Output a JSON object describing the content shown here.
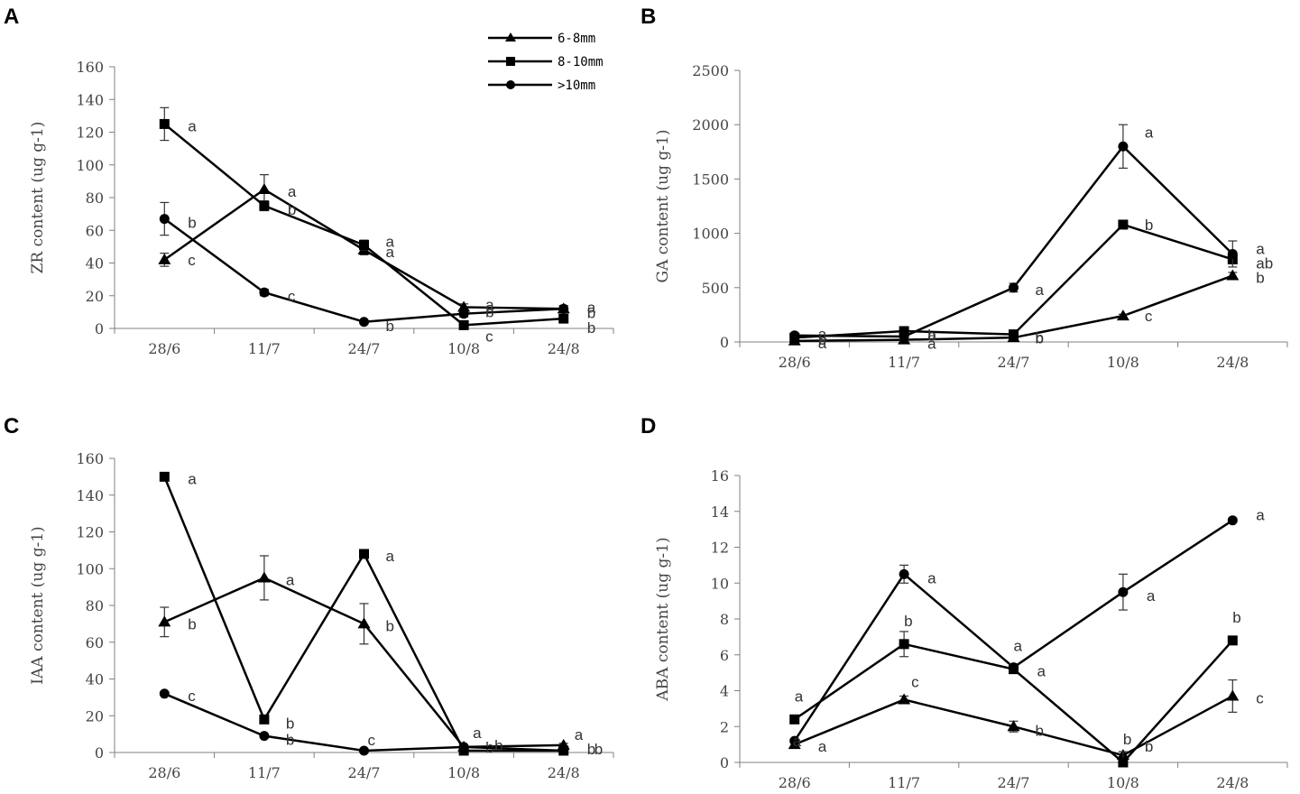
{
  "legend": [
    {
      "name": "6-8mm",
      "marker": "triangle"
    },
    {
      "name": "8-10mm",
      "marker": "square"
    },
    {
      "name": ">10mm",
      "marker": "circle"
    }
  ],
  "chart_data": [
    {
      "letter": "A",
      "type": "line",
      "ylabel": "ZR content (ug g-1)",
      "ylim": [
        0,
        160
      ],
      "yticks": [
        0,
        20,
        40,
        60,
        80,
        100,
        120,
        140,
        160
      ],
      "categories": [
        "28/6",
        "11/7",
        "24/7",
        "10/8",
        "24/8"
      ],
      "series": [
        {
          "name": "6-8mm",
          "marker": "triangle",
          "values": [
            42,
            85,
            48,
            13,
            12
          ],
          "errors": [
            4,
            9,
            3,
            2,
            2
          ],
          "labels": [
            "c",
            "a",
            "a",
            "a",
            "a"
          ]
        },
        {
          "name": "8-10mm",
          "marker": "square",
          "values": [
            125,
            75,
            51,
            2,
            6
          ],
          "errors": [
            10,
            3,
            3,
            1,
            1
          ],
          "labels": [
            "a",
            "b",
            "a",
            "c",
            "b"
          ]
        },
        {
          "name": ">10mm",
          "marker": "circle",
          "values": [
            67,
            22,
            4,
            9,
            12
          ],
          "errors": [
            10,
            2,
            1,
            2,
            2
          ],
          "labels": [
            "b",
            "c",
            "b",
            "b",
            "b"
          ]
        }
      ]
    },
    {
      "letter": "B",
      "type": "line",
      "ylabel": "GA content (ug g-1)",
      "ylim": [
        0,
        2500
      ],
      "yticks": [
        0,
        500,
        1000,
        1500,
        2000,
        2500
      ],
      "categories": [
        "28/6",
        "11/7",
        "24/7",
        "10/8",
        "24/8"
      ],
      "series": [
        {
          "name": "6-8mm",
          "marker": "triangle",
          "values": [
            10,
            20,
            40,
            240,
            610
          ],
          "errors": [
            5,
            5,
            8,
            15,
            30
          ],
          "labels": [
            "a",
            "a",
            "b",
            "c",
            "b"
          ]
        },
        {
          "name": "8-10mm",
          "marker": "square",
          "values": [
            40,
            100,
            70,
            1080,
            760
          ],
          "errors": [
            5,
            10,
            10,
            30,
            40
          ],
          "labels": [
            "b",
            "b",
            "b",
            "b",
            "ab"
          ]
        },
        {
          "name": ">10mm",
          "marker": "circle",
          "values": [
            60,
            50,
            500,
            1800,
            810
          ],
          "errors": [
            8,
            8,
            40,
            200,
            120
          ],
          "labels": [
            "a",
            "a",
            "a",
            "a",
            "a"
          ]
        }
      ]
    },
    {
      "letter": "C",
      "type": "line",
      "ylabel": "IAA content (ug g-1)",
      "ylim": [
        0,
        160
      ],
      "yticks": [
        0,
        20,
        40,
        60,
        80,
        100,
        120,
        140,
        160
      ],
      "categories": [
        "28/6",
        "11/7",
        "24/7",
        "10/8",
        "24/8"
      ],
      "series": [
        {
          "name": "6-8mm",
          "marker": "triangle",
          "values": [
            71,
            95,
            70,
            3,
            4
          ],
          "errors": [
            8,
            12,
            11,
            1,
            1
          ],
          "labels": [
            "b",
            "a",
            "b",
            "a",
            "a"
          ]
        },
        {
          "name": "8-10mm",
          "marker": "square",
          "values": [
            150,
            18,
            108,
            1,
            1
          ],
          "errors": [
            2,
            2,
            2,
            1,
            1
          ],
          "labels": [
            "a",
            "b",
            "a",
            "b",
            "b"
          ]
        },
        {
          "name": ">10mm",
          "marker": "circle",
          "values": [
            32,
            9,
            1,
            3,
            1
          ],
          "errors": [
            1,
            1,
            1,
            1,
            1
          ],
          "labels": [
            "c",
            "b",
            "c",
            "b",
            "b"
          ]
        }
      ]
    },
    {
      "letter": "D",
      "type": "line",
      "ylabel": "ABA content (ug g-1)",
      "ylim": [
        0,
        16
      ],
      "yticks": [
        0,
        2,
        4,
        6,
        8,
        10,
        12,
        14,
        16
      ],
      "categories": [
        "28/6",
        "11/7",
        "24/7",
        "10/8",
        "24/8"
      ],
      "series": [
        {
          "name": "6-8mm",
          "marker": "triangle",
          "values": [
            1.0,
            3.5,
            2.0,
            0.4,
            3.7
          ],
          "errors": [
            0.1,
            0.2,
            0.3,
            0.2,
            0.9
          ],
          "labels": [
            "a",
            "c",
            "b",
            "b",
            "c"
          ]
        },
        {
          "name": "8-10mm",
          "marker": "square",
          "values": [
            2.4,
            6.6,
            5.2,
            0.0,
            6.8
          ],
          "errors": [
            0.1,
            0.7,
            0.2,
            0.6,
            0.1
          ],
          "labels": [
            "a",
            "b",
            "a",
            "b",
            "b"
          ]
        },
        {
          "name": ">10mm",
          "marker": "circle",
          "values": [
            1.2,
            10.5,
            5.3,
            9.5,
            13.5
          ],
          "errors": [
            0.1,
            0.5,
            0.2,
            1.0,
            0.1
          ],
          "labels": [
            "a",
            "a",
            "a",
            "a",
            "a"
          ]
        }
      ]
    }
  ]
}
